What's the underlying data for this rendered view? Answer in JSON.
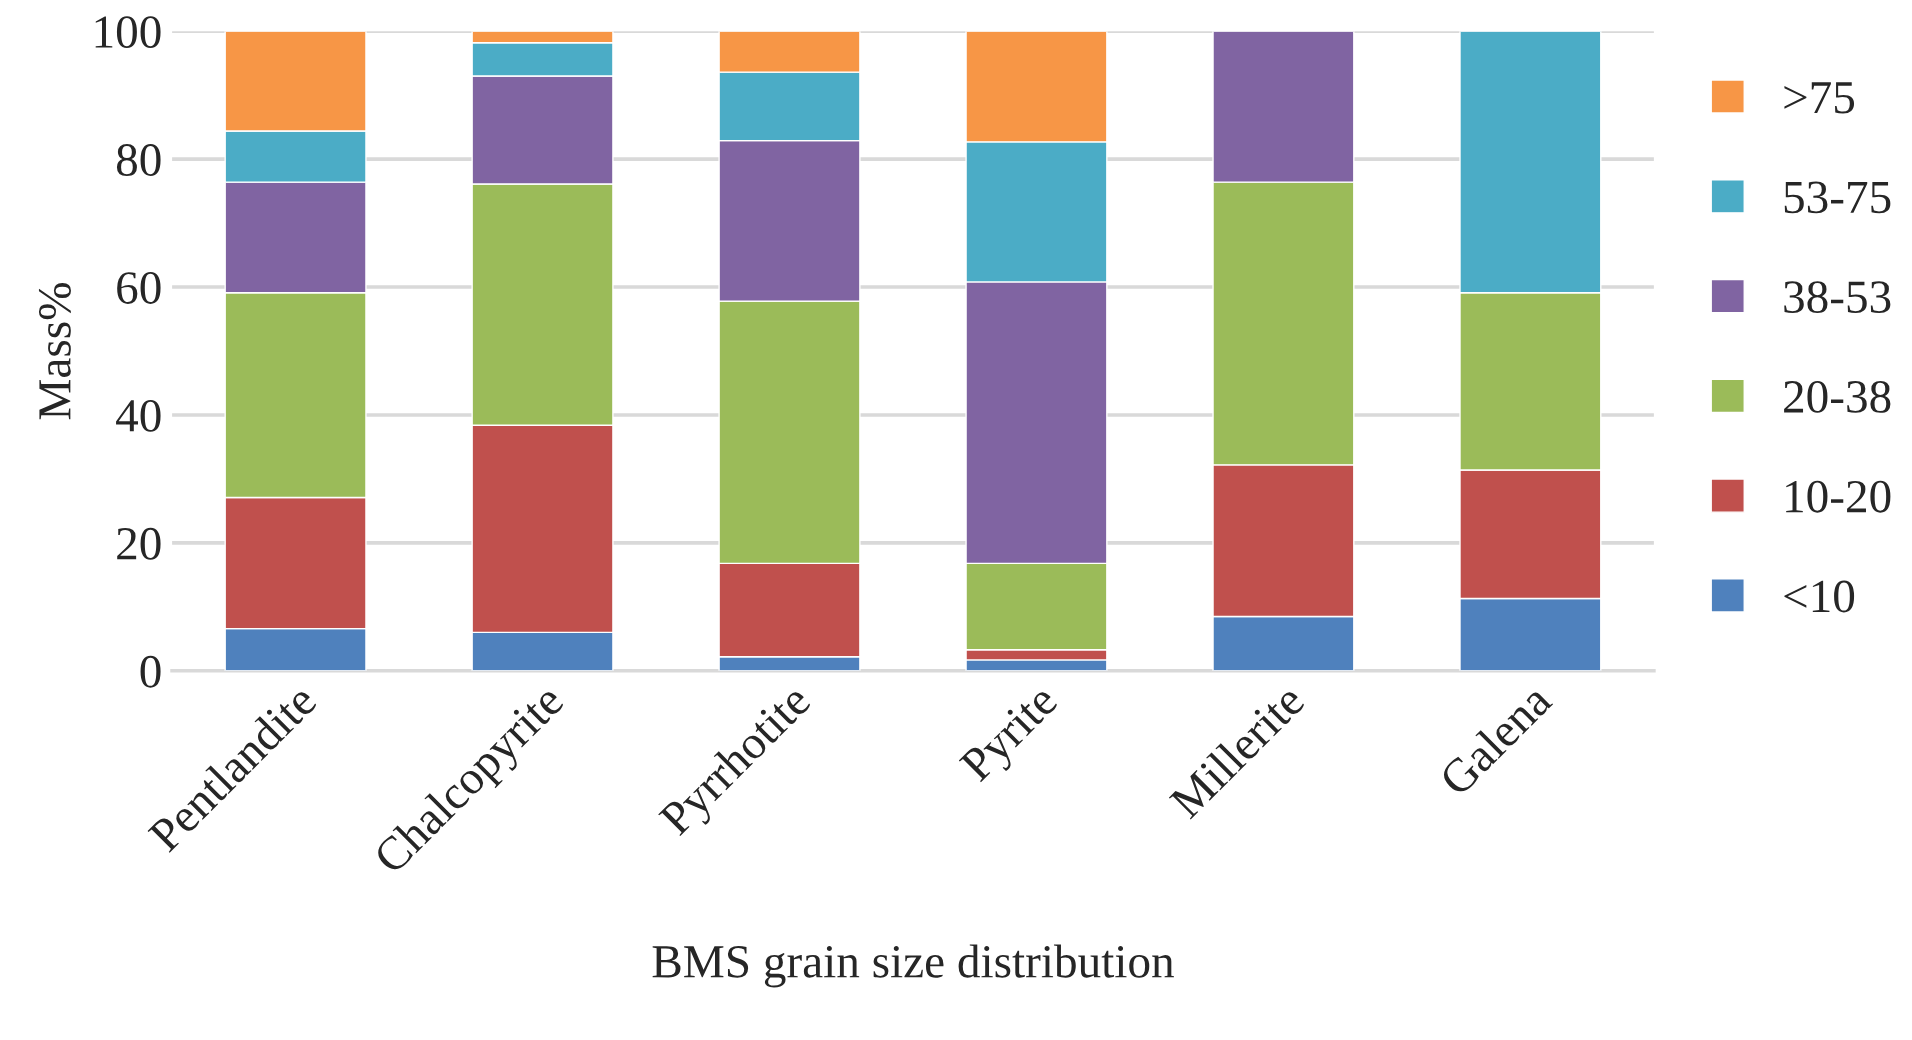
{
  "chart_data": {
    "type": "bar",
    "stacked": true,
    "xlabel": "BMS grain size distribution",
    "ylabel": "Mass%",
    "categories": [
      "Pentlandite",
      "Chalcopyrite",
      "Pyrrhotite",
      "Pyrite",
      "Millerite",
      "Galena"
    ],
    "series": [
      {
        "name": "<10",
        "color": "#4f81bd",
        "values": [
          6.6,
          6.0,
          2.2,
          1.7,
          8.5,
          11.3
        ]
      },
      {
        "name": "10-20",
        "color": "#c0504d",
        "values": [
          20.5,
          32.4,
          14.6,
          1.6,
          23.7,
          20.1
        ]
      },
      {
        "name": "20-38",
        "color": "#9bbb59",
        "values": [
          32.0,
          37.7,
          41.0,
          13.5,
          44.2,
          27.7
        ]
      },
      {
        "name": "38-53",
        "color": "#8064a2",
        "values": [
          17.3,
          16.9,
          25.1,
          44.0,
          23.6,
          null
        ]
      },
      {
        "name": "53-75",
        "color": "#4bacc6",
        "values": [
          8.0,
          5.2,
          10.7,
          21.9,
          null,
          40.9
        ]
      },
      {
        "name": ">75",
        "color": "#f79646",
        "values": [
          15.6,
          1.8,
          6.4,
          17.3,
          null,
          null
        ]
      }
    ],
    "ylim": [
      0,
      100
    ],
    "yticks": [
      0,
      20,
      40,
      60,
      80,
      100
    ],
    "grid": "y",
    "legend": "right"
  }
}
